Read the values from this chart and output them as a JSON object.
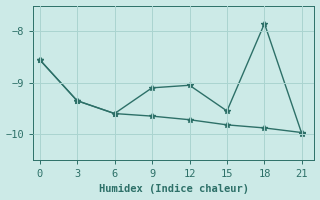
{
  "xlabel": "Humidex (Indice chaleur)",
  "background_color": "#cceae7",
  "line_color": "#2d7068",
  "grid_color": "#aad4d0",
  "xlim": [
    -0.5,
    22
  ],
  "ylim": [
    -10.5,
    -7.5
  ],
  "xticks": [
    0,
    3,
    6,
    9,
    12,
    15,
    18,
    21
  ],
  "yticks": [
    -10,
    -9,
    -8
  ],
  "line1_x": [
    0,
    3,
    6,
    9,
    12,
    15,
    18,
    21
  ],
  "line1_y": [
    -8.55,
    -9.35,
    -9.6,
    -9.1,
    -9.05,
    -9.55,
    -7.85,
    -10.0
  ],
  "line2_x": [
    0,
    3,
    6,
    9,
    12,
    15,
    18,
    21
  ],
  "line2_y": [
    -8.55,
    -9.35,
    -9.6,
    -9.65,
    -9.72,
    -9.82,
    -9.88,
    -9.97
  ],
  "marker": "*",
  "marker_size": 4,
  "linewidth": 1.0,
  "font_family": "monospace",
  "tick_fontsize": 7.5,
  "xlabel_fontsize": 7.5
}
